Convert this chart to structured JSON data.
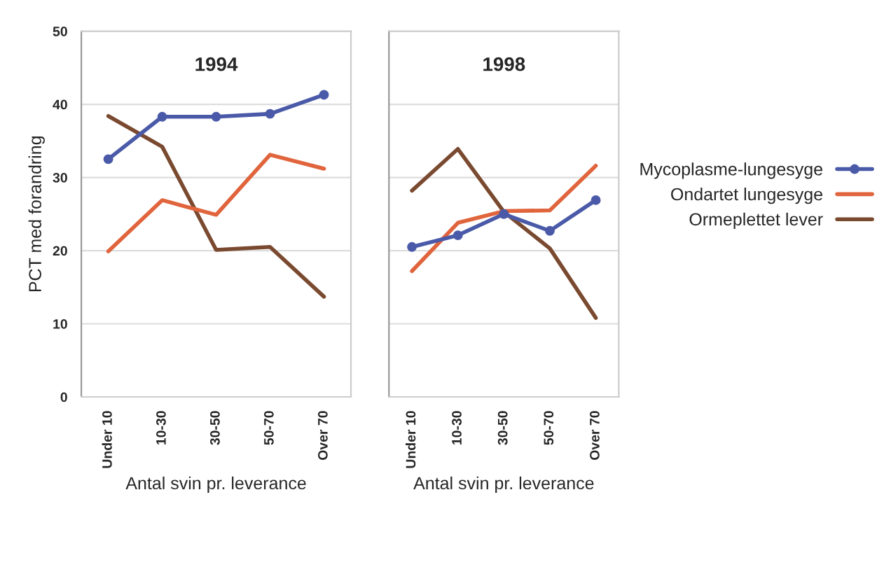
{
  "chart_data": [
    {
      "type": "line",
      "title": "1994",
      "ylabel": "PCT med forandring",
      "xlabel": "Antal svin pr. leverance",
      "categories": [
        "Under 10",
        "10-30",
        "30-50",
        "50-70",
        "Over 70"
      ],
      "ylim": [
        0,
        50
      ],
      "yticks": [
        0,
        10,
        20,
        30,
        40,
        50
      ],
      "grid": "y",
      "series": [
        {
          "color": "#4a5aa8",
          "marker": "circle",
          "values": [
            32.5,
            38.3,
            38.3,
            38.7,
            41.3
          ]
        },
        {
          "color": "#e0643c",
          "marker": "none",
          "values": [
            19.9,
            26.9,
            24.9,
            33.1,
            31.2
          ]
        },
        {
          "color": "#7a4a30",
          "marker": "none",
          "values": [
            38.4,
            34.2,
            20.1,
            20.5,
            13.7
          ]
        }
      ]
    },
    {
      "type": "line",
      "title": "1998",
      "xlabel": "Antal svin pr. leverance",
      "categories": [
        "Under 10",
        "10-30",
        "30-50",
        "50-70",
        "Over 70"
      ],
      "ylim": [
        0,
        50
      ],
      "yticks": [
        0,
        10,
        20,
        30,
        40,
        50
      ],
      "grid": "y",
      "tick_labels": "x",
      "legend": "right",
      "series": [
        {
          "name": "Mycoplasme-lungesyge",
          "color": "#4a5aa8",
          "marker": "circle",
          "values": [
            20.5,
            22.1,
            25.0,
            22.7,
            26.9
          ]
        },
        {
          "name": "Ondartet lungesyge",
          "color": "#e0643c",
          "marker": "none",
          "values": [
            17.2,
            23.8,
            25.4,
            25.5,
            31.6
          ]
        },
        {
          "name": "Ormeplettet lever",
          "color": "#7a4a30",
          "marker": "none",
          "values": [
            28.2,
            33.9,
            25.3,
            20.3,
            10.8
          ]
        }
      ]
    }
  ]
}
